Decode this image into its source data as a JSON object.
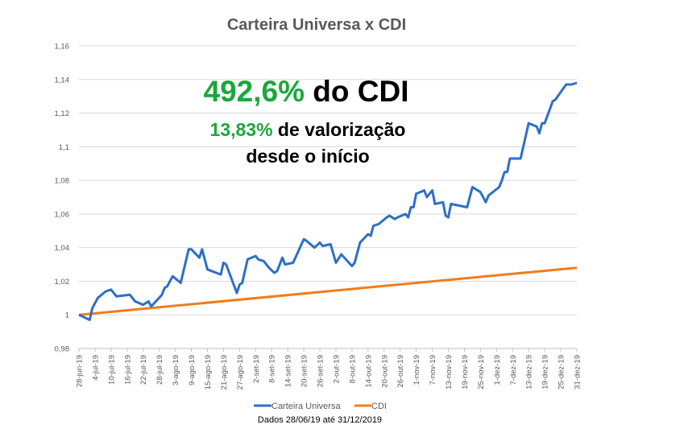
{
  "chart_data": {
    "type": "line",
    "title": "Carteira Universa x CDI",
    "xlabel": "",
    "ylabel": "",
    "ylim": [
      0.98,
      1.16
    ],
    "xlim": [
      "2019-06-28",
      "2019-12-31"
    ],
    "grid": true,
    "legend_position": "bottom",
    "y_ticks": [
      {
        "value": 1.16,
        "label": "1,16"
      },
      {
        "value": 1.14,
        "label": "1,14"
      },
      {
        "value": 1.12,
        "label": "1,12"
      },
      {
        "value": 1.1,
        "label": "1,1"
      },
      {
        "value": 1.08,
        "label": "1,08"
      },
      {
        "value": 1.06,
        "label": "1,06"
      },
      {
        "value": 1.04,
        "label": "1,04"
      },
      {
        "value": 1.02,
        "label": "1,02"
      },
      {
        "value": 1.0,
        "label": "1"
      },
      {
        "value": 0.98,
        "label": "0,98"
      }
    ],
    "x_ticks": [
      {
        "date": "2019-06-28",
        "label": "28-jun-19"
      },
      {
        "date": "2019-07-04",
        "label": "4-jul-19"
      },
      {
        "date": "2019-07-10",
        "label": "10-jul-19"
      },
      {
        "date": "2019-07-16",
        "label": "16-jul-19"
      },
      {
        "date": "2019-07-22",
        "label": "22-jul-19"
      },
      {
        "date": "2019-07-28",
        "label": "28-jul-19"
      },
      {
        "date": "2019-08-03",
        "label": "3-ago-19"
      },
      {
        "date": "2019-08-09",
        "label": "9-ago-19"
      },
      {
        "date": "2019-08-15",
        "label": "15-ago-19"
      },
      {
        "date": "2019-08-21",
        "label": "21-ago-19"
      },
      {
        "date": "2019-08-27",
        "label": "27-ago-19"
      },
      {
        "date": "2019-09-02",
        "label": "2-set-19"
      },
      {
        "date": "2019-09-08",
        "label": "8-set-19"
      },
      {
        "date": "2019-09-14",
        "label": "14-set-19"
      },
      {
        "date": "2019-09-20",
        "label": "20-set-19"
      },
      {
        "date": "2019-09-26",
        "label": "26-set-19"
      },
      {
        "date": "2019-10-02",
        "label": "2-out-19"
      },
      {
        "date": "2019-10-08",
        "label": "8-out-19"
      },
      {
        "date": "2019-10-14",
        "label": "14-out-19"
      },
      {
        "date": "2019-10-20",
        "label": "20-out-19"
      },
      {
        "date": "2019-10-26",
        "label": "26-out-19"
      },
      {
        "date": "2019-11-01",
        "label": "1-nov-19"
      },
      {
        "date": "2019-11-07",
        "label": "7-nov-19"
      },
      {
        "date": "2019-11-13",
        "label": "13-nov-19"
      },
      {
        "date": "2019-11-19",
        "label": "19-nov-19"
      },
      {
        "date": "2019-11-25",
        "label": "25-nov-19"
      },
      {
        "date": "2019-12-01",
        "label": "1-dez-19"
      },
      {
        "date": "2019-12-07",
        "label": "7-dez-19"
      },
      {
        "date": "2019-12-13",
        "label": "13-dez-19"
      },
      {
        "date": "2019-12-19",
        "label": "19-dez-19"
      },
      {
        "date": "2019-12-25",
        "label": "25-dez-19"
      },
      {
        "date": "2019-12-31",
        "label": "31-dez-19"
      }
    ],
    "series": [
      {
        "name": "Carteira Universa",
        "color": "#2e6fc7",
        "points": [
          [
            "2019-06-28",
            1.0
          ],
          [
            "2019-07-02",
            0.997
          ],
          [
            "2019-07-03",
            1.004
          ],
          [
            "2019-07-05",
            1.01
          ],
          [
            "2019-07-08",
            1.014
          ],
          [
            "2019-07-10",
            1.015
          ],
          [
            "2019-07-12",
            1.011
          ],
          [
            "2019-07-17",
            1.012
          ],
          [
            "2019-07-19",
            1.008
          ],
          [
            "2019-07-22",
            1.006
          ],
          [
            "2019-07-24",
            1.008
          ],
          [
            "2019-07-25",
            1.005
          ],
          [
            "2019-07-29",
            1.012
          ],
          [
            "2019-07-30",
            1.016
          ],
          [
            "2019-07-31",
            1.017
          ],
          [
            "2019-08-02",
            1.023
          ],
          [
            "2019-08-05",
            1.019
          ],
          [
            "2019-08-08",
            1.039
          ],
          [
            "2019-08-09",
            1.039
          ],
          [
            "2019-08-12",
            1.034
          ],
          [
            "2019-08-13",
            1.039
          ],
          [
            "2019-08-15",
            1.027
          ],
          [
            "2019-08-20",
            1.024
          ],
          [
            "2019-08-21",
            1.031
          ],
          [
            "2019-08-22",
            1.03
          ],
          [
            "2019-08-26",
            1.013
          ],
          [
            "2019-08-27",
            1.018
          ],
          [
            "2019-08-28",
            1.019
          ],
          [
            "2019-08-30",
            1.033
          ],
          [
            "2019-09-02",
            1.035
          ],
          [
            "2019-09-03",
            1.033
          ],
          [
            "2019-09-05",
            1.032
          ],
          [
            "2019-09-07",
            1.028
          ],
          [
            "2019-09-09",
            1.025
          ],
          [
            "2019-09-10",
            1.026
          ],
          [
            "2019-09-12",
            1.034
          ],
          [
            "2019-09-13",
            1.03
          ],
          [
            "2019-09-16",
            1.031
          ],
          [
            "2019-09-20",
            1.045
          ],
          [
            "2019-09-21",
            1.044
          ],
          [
            "2019-09-24",
            1.04
          ],
          [
            "2019-09-26",
            1.043
          ],
          [
            "2019-09-27",
            1.041
          ],
          [
            "2019-09-30",
            1.042
          ],
          [
            "2019-10-02",
            1.031
          ],
          [
            "2019-10-04",
            1.036
          ],
          [
            "2019-10-08",
            1.029
          ],
          [
            "2019-10-09",
            1.031
          ],
          [
            "2019-10-11",
            1.043
          ],
          [
            "2019-10-14",
            1.048
          ],
          [
            "2019-10-15",
            1.047
          ],
          [
            "2019-10-16",
            1.053
          ],
          [
            "2019-10-18",
            1.054
          ],
          [
            "2019-10-21",
            1.058
          ],
          [
            "2019-10-22",
            1.059
          ],
          [
            "2019-10-24",
            1.057
          ],
          [
            "2019-10-25",
            1.058
          ],
          [
            "2019-10-28",
            1.06
          ],
          [
            "2019-10-29",
            1.058
          ],
          [
            "2019-10-30",
            1.064
          ],
          [
            "2019-10-31",
            1.064
          ],
          [
            "2019-11-01",
            1.072
          ],
          [
            "2019-11-04",
            1.074
          ],
          [
            "2019-11-05",
            1.07
          ],
          [
            "2019-11-07",
            1.074
          ],
          [
            "2019-11-08",
            1.066
          ],
          [
            "2019-11-11",
            1.067
          ],
          [
            "2019-11-12",
            1.059
          ],
          [
            "2019-11-13",
            1.058
          ],
          [
            "2019-11-14",
            1.066
          ],
          [
            "2019-11-20",
            1.064
          ],
          [
            "2019-11-22",
            1.076
          ],
          [
            "2019-11-25",
            1.073
          ],
          [
            "2019-11-27",
            1.067
          ],
          [
            "2019-11-28",
            1.071
          ],
          [
            "2019-12-02",
            1.076
          ],
          [
            "2019-12-03",
            1.08
          ],
          [
            "2019-12-04",
            1.085
          ],
          [
            "2019-12-05",
            1.085
          ],
          [
            "2019-12-06",
            1.093
          ],
          [
            "2019-12-10",
            1.093
          ],
          [
            "2019-12-13",
            1.114
          ],
          [
            "2019-12-16",
            1.112
          ],
          [
            "2019-12-17",
            1.108
          ],
          [
            "2019-12-18",
            1.114
          ],
          [
            "2019-12-19",
            1.114
          ],
          [
            "2019-12-22",
            1.127
          ],
          [
            "2019-12-23",
            1.128
          ],
          [
            "2019-12-27",
            1.137
          ],
          [
            "2019-12-29",
            1.137
          ],
          [
            "2019-12-31",
            1.138
          ]
        ]
      },
      {
        "name": "CDI",
        "color": "#f07d1a",
        "points": [
          [
            "2019-06-28",
            1.0
          ],
          [
            "2019-12-31",
            1.028
          ]
        ]
      }
    ],
    "annotations": {
      "line1_value": "492,6%",
      "line1_text": " do CDI",
      "line2_value": "13,83%",
      "line2_text": " de valorização",
      "line3_text": "desde o início",
      "highlight_color": "#1aa83a"
    },
    "caption": "Dados 28/06/19 até 31/12/2019"
  }
}
